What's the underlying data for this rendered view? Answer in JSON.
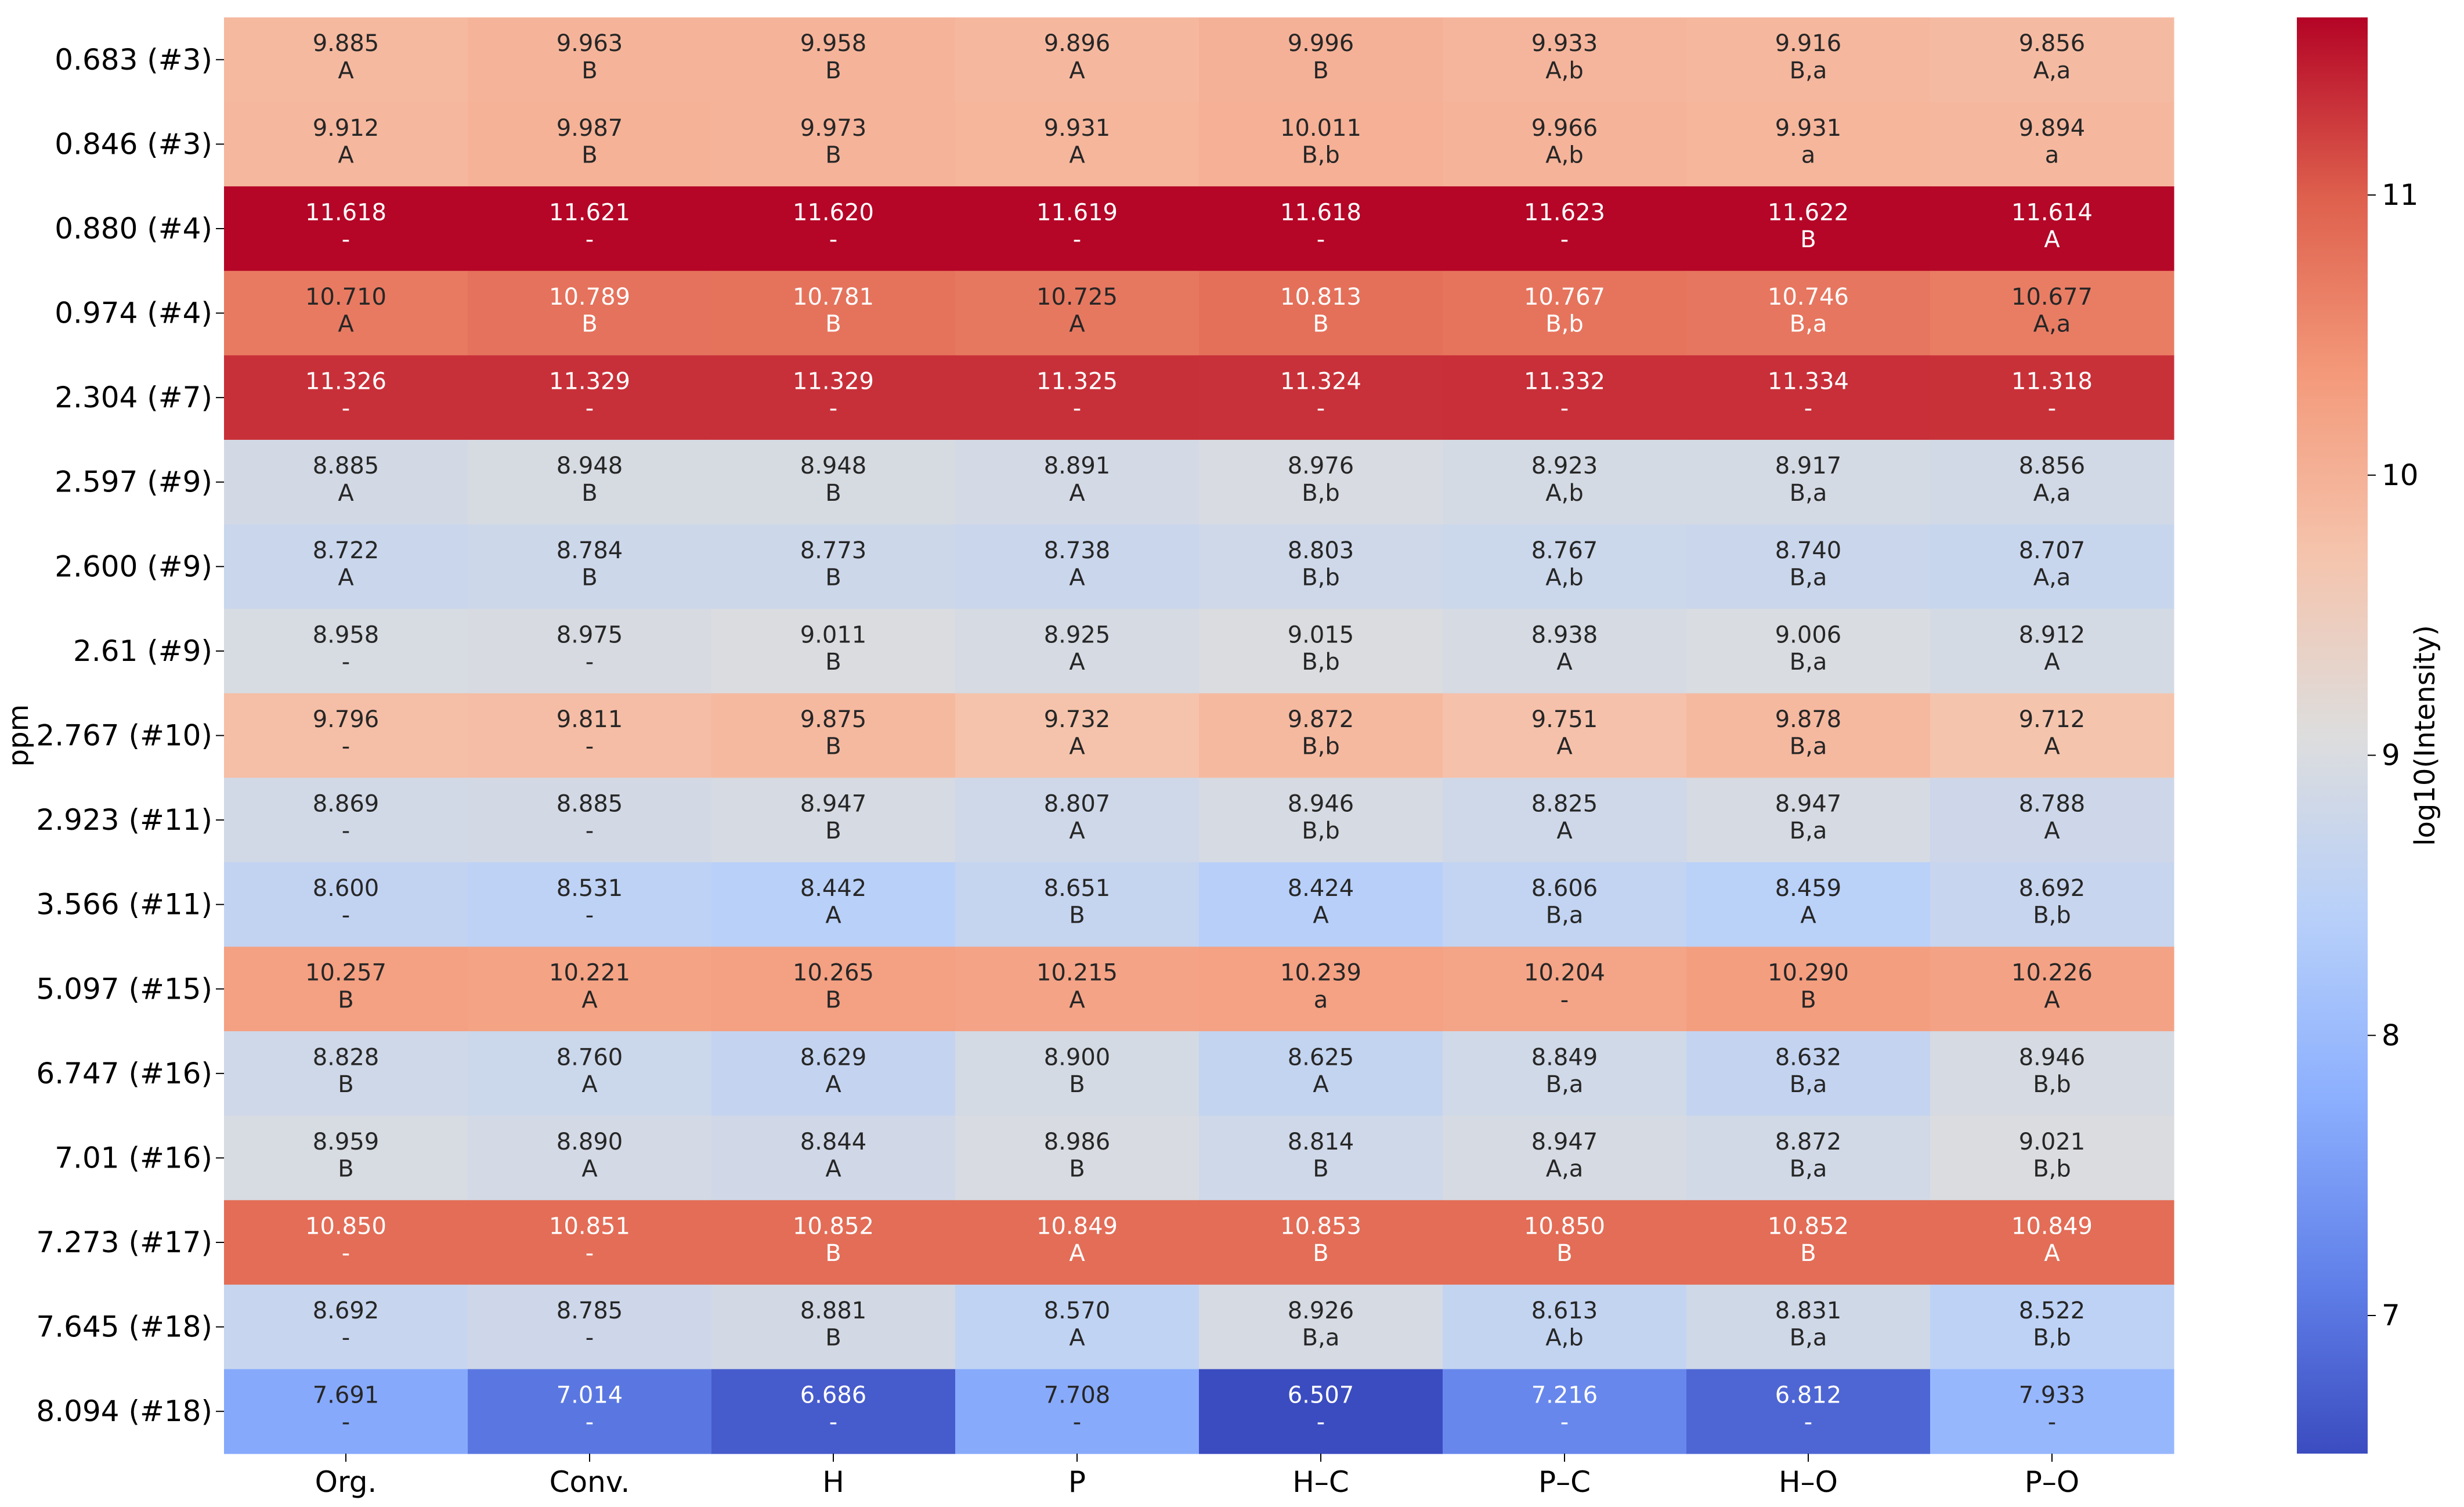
{
  "chart_data": {
    "type": "heatmap",
    "title": "",
    "xlabel": "",
    "ylabel": "ppm",
    "colorbar_label": "log10(Intensity)",
    "colormap": "coolwarm",
    "color_range": [
      6.507,
      11.634
    ],
    "colorbar_ticks": [
      "7",
      "8",
      "9",
      "10",
      "11"
    ],
    "colorbar_tick_values": [
      7,
      8,
      9,
      10,
      11
    ],
    "columns": [
      "Org.",
      "Conv.",
      "H",
      "P",
      "H–C",
      "P–C",
      "H–O",
      "P–O"
    ],
    "rows": [
      "0.683 (#3)",
      "0.846 (#3)",
      "0.880 (#4)",
      "0.974 (#4)",
      "2.304 (#7)",
      "2.597 (#9)",
      "2.600 (#9)",
      "2.61 (#9)",
      "2.767 (#10)",
      "2.923 (#11)",
      "3.566 (#11)",
      "5.097 (#15)",
      "6.747 (#16)",
      "7.01 (#16)",
      "7.273 (#17)",
      "7.645 (#18)",
      "8.094 (#18)"
    ],
    "values": [
      [
        "9.885",
        "9.963",
        "9.958",
        "9.896",
        "9.996",
        "9.933",
        "9.916",
        "9.856"
      ],
      [
        "9.912",
        "9.987",
        "9.973",
        "9.931",
        "10.011",
        "9.966",
        "9.931",
        "9.894"
      ],
      [
        "11.618",
        "11.621",
        "11.620",
        "11.619",
        "11.618",
        "11.623",
        "11.622",
        "11.614"
      ],
      [
        "10.710",
        "10.789",
        "10.781",
        "10.725",
        "10.813",
        "10.767",
        "10.746",
        "10.677"
      ],
      [
        "11.326",
        "11.329",
        "11.329",
        "11.325",
        "11.324",
        "11.332",
        "11.334",
        "11.318"
      ],
      [
        "8.885",
        "8.948",
        "8.948",
        "8.891",
        "8.976",
        "8.923",
        "8.917",
        "8.856"
      ],
      [
        "8.722",
        "8.784",
        "8.773",
        "8.738",
        "8.803",
        "8.767",
        "8.740",
        "8.707"
      ],
      [
        "8.958",
        "8.975",
        "9.011",
        "8.925",
        "9.015",
        "8.938",
        "9.006",
        "8.912"
      ],
      [
        "9.796",
        "9.811",
        "9.875",
        "9.732",
        "9.872",
        "9.751",
        "9.878",
        "9.712"
      ],
      [
        "8.869",
        "8.885",
        "8.947",
        "8.807",
        "8.946",
        "8.825",
        "8.947",
        "8.788"
      ],
      [
        "8.600",
        "8.531",
        "8.442",
        "8.651",
        "8.424",
        "8.606",
        "8.459",
        "8.692"
      ],
      [
        "10.257",
        "10.221",
        "10.265",
        "10.215",
        "10.239",
        "10.204",
        "10.290",
        "10.226"
      ],
      [
        "8.828",
        "8.760",
        "8.629",
        "8.900",
        "8.625",
        "8.849",
        "8.632",
        "8.946"
      ],
      [
        "8.959",
        "8.890",
        "8.844",
        "8.986",
        "8.814",
        "8.947",
        "8.872",
        "9.021"
      ],
      [
        "10.850",
        "10.851",
        "10.852",
        "10.849",
        "10.853",
        "10.850",
        "10.852",
        "10.849"
      ],
      [
        "8.692",
        "8.785",
        "8.881",
        "8.570",
        "8.926",
        "8.613",
        "8.831",
        "8.522"
      ],
      [
        "7.691",
        "7.014",
        "6.686",
        "7.708",
        "6.507",
        "7.216",
        "6.812",
        "7.933"
      ]
    ],
    "letters": [
      [
        "A",
        "B",
        "B",
        "A",
        "B",
        "A,b",
        "B,a",
        "A,a"
      ],
      [
        "A",
        "B",
        "B",
        "A",
        "B,b",
        "A,b",
        "a",
        "a"
      ],
      [
        "-",
        "-",
        "-",
        "-",
        "-",
        "-",
        "B",
        "A"
      ],
      [
        "A",
        "B",
        "B",
        "A",
        "B",
        "B,b",
        "B,a",
        "A,a"
      ],
      [
        "-",
        "-",
        "-",
        "-",
        "-",
        "-",
        "-",
        "-"
      ],
      [
        "A",
        "B",
        "B",
        "A",
        "B,b",
        "A,b",
        "B,a",
        "A,a"
      ],
      [
        "A",
        "B",
        "B",
        "A",
        "B,b",
        "A,b",
        "B,a",
        "A,a"
      ],
      [
        "-",
        "-",
        "B",
        "A",
        "B,b",
        "A",
        "B,a",
        "A"
      ],
      [
        "-",
        "-",
        "B",
        "A",
        "B,b",
        "A",
        "B,a",
        "A"
      ],
      [
        "-",
        "-",
        "B",
        "A",
        "B,b",
        "A",
        "B,a",
        "A"
      ],
      [
        "-",
        "-",
        "A",
        "B",
        "A",
        "B,a",
        "A",
        "B,b"
      ],
      [
        "B",
        "A",
        "B",
        "A",
        "a",
        "-",
        "B",
        "A"
      ],
      [
        "B",
        "A",
        "A",
        "B",
        "A",
        "B,a",
        "B,a",
        "B,b"
      ],
      [
        "B",
        "A",
        "A",
        "B",
        "B",
        "A,a",
        "B,a",
        "B,b"
      ],
      [
        "-",
        "-",
        "B",
        "A",
        "B",
        "B",
        "B",
        "A"
      ],
      [
        "-",
        "-",
        "B",
        "A",
        "B,a",
        "A,b",
        "B,a",
        "B,b"
      ],
      [
        "-",
        "-",
        "-",
        "-",
        "-",
        "-",
        "-",
        "-"
      ]
    ],
    "grid": false,
    "legend": "colorbar-right"
  }
}
